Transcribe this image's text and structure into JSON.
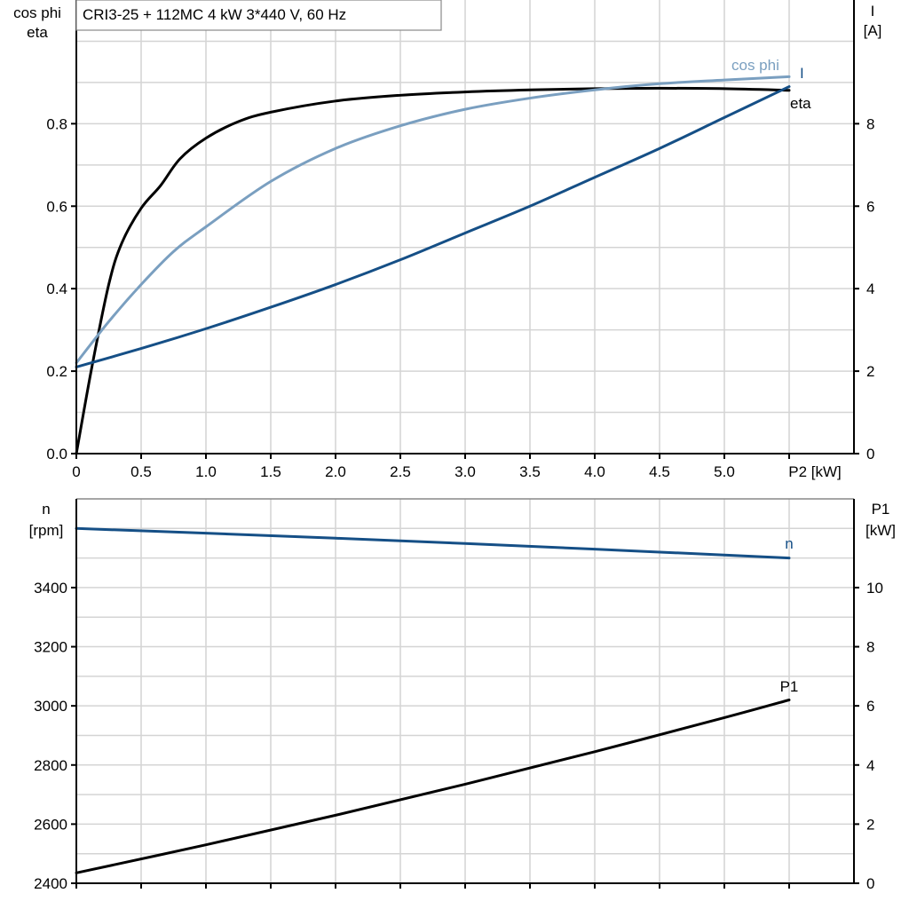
{
  "title": "CRI3-25 + 112MC   4 kW   3*440 V, 60 Hz",
  "chart_data": [
    {
      "type": "line",
      "x_label": "P2 [kW]",
      "x_ticks": [
        "0",
        "0.5",
        "1.0",
        "1.5",
        "2.0",
        "2.5",
        "3.0",
        "3.5",
        "4.0",
        "4.5",
        "5.0"
      ],
      "xlim": [
        0,
        6
      ],
      "left_axis": {
        "label_line1": "cos phi",
        "label_line2": "eta",
        "ylim": [
          0,
          1.1
        ],
        "ticks": [
          "0.0",
          "0.2",
          "0.4",
          "0.6",
          "0.8"
        ]
      },
      "right_axis": {
        "label_line1": "I",
        "label_line2": "[A]",
        "ylim": [
          0,
          11
        ],
        "ticks": [
          "0",
          "2",
          "4",
          "6",
          "8"
        ]
      },
      "grid": true,
      "series": [
        {
          "name": "eta",
          "axis": "left",
          "color": "#000000",
          "x": [
            0,
            0.12,
            0.25,
            0.35,
            0.5,
            0.65,
            0.8,
            1.0,
            1.25,
            1.5,
            2.0,
            2.5,
            3.0,
            3.5,
            4.0,
            4.5,
            5.0,
            5.5
          ],
          "y": [
            0,
            0.21,
            0.41,
            0.51,
            0.595,
            0.65,
            0.715,
            0.765,
            0.805,
            0.828,
            0.855,
            0.869,
            0.877,
            0.882,
            0.885,
            0.886,
            0.885,
            0.881
          ]
        },
        {
          "name": "cos phi",
          "axis": "left",
          "color": "#7a9fc0",
          "x": [
            0,
            0.25,
            0.5,
            0.75,
            1.0,
            1.5,
            2.0,
            2.5,
            3.0,
            3.5,
            4.0,
            4.5,
            5.0,
            5.5
          ],
          "y": [
            0.22,
            0.32,
            0.41,
            0.49,
            0.55,
            0.66,
            0.74,
            0.795,
            0.835,
            0.862,
            0.882,
            0.897,
            0.906,
            0.914
          ]
        },
        {
          "name": "I",
          "axis": "right",
          "color": "#154f86",
          "x": [
            0,
            0.5,
            1.0,
            1.5,
            2.0,
            2.5,
            3.0,
            3.5,
            4.0,
            4.5,
            5.0,
            5.5
          ],
          "y": [
            2.1,
            2.55,
            3.03,
            3.55,
            4.1,
            4.7,
            5.35,
            6.0,
            6.7,
            7.4,
            8.15,
            8.9
          ]
        }
      ]
    },
    {
      "type": "line",
      "xlim": [
        0,
        6
      ],
      "left_axis": {
        "label_line1": "n",
        "label_line2": "[rpm]",
        "ylim": [
          2400,
          3700
        ],
        "ticks": [
          "2400",
          "2600",
          "2800",
          "3000",
          "3200",
          "3400"
        ]
      },
      "right_axis": {
        "label_line1": "P1",
        "label_line2": "[kW]",
        "ylim": [
          0,
          13
        ],
        "ticks": [
          "0",
          "2",
          "4",
          "6",
          "8",
          "10"
        ]
      },
      "grid": true,
      "series": [
        {
          "name": "n",
          "axis": "left",
          "color": "#154f86",
          "x": [
            0,
            1,
            2,
            3,
            4,
            5,
            5.5
          ],
          "y": [
            3600,
            3584,
            3567,
            3549,
            3530,
            3510,
            3500
          ]
        },
        {
          "name": "P1",
          "axis": "right",
          "color": "#000000",
          "x": [
            0,
            1,
            2,
            3,
            4,
            5,
            5.5
          ],
          "y": [
            0.35,
            1.3,
            2.3,
            3.35,
            4.45,
            5.6,
            6.2
          ]
        }
      ]
    }
  ]
}
